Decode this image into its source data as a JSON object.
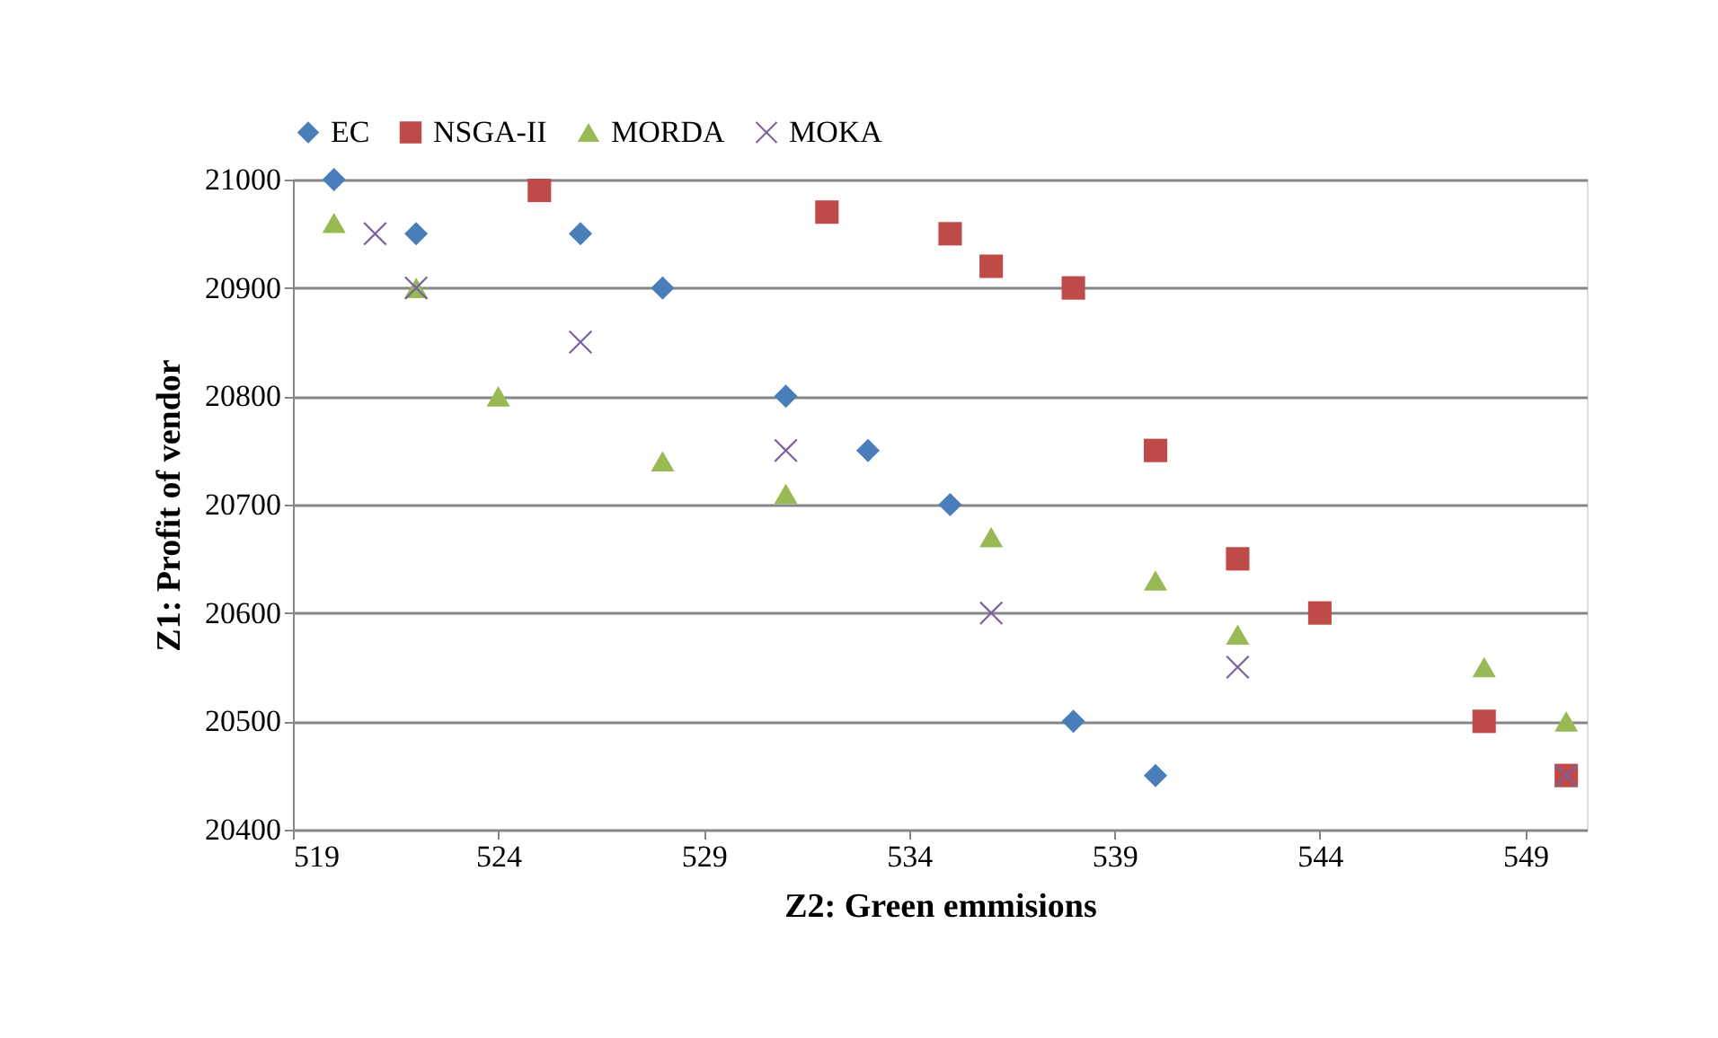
{
  "chart_data": {
    "type": "scatter",
    "xlabel": "Z2: Green emmisions",
    "ylabel": "Z1: Profit of vendor",
    "xlim": [
      519,
      550.5
    ],
    "xticks": [
      519,
      524,
      529,
      534,
      539,
      544,
      549
    ],
    "ylim": [
      20400,
      21000
    ],
    "yticks": [
      20400,
      20500,
      20600,
      20700,
      20800,
      20900,
      21000
    ],
    "grid": "y",
    "legend": "top",
    "series": [
      {
        "name": "EC",
        "color": "#4a7ebb",
        "marker": "diamond",
        "x": [
          520,
          522,
          526,
          528,
          531,
          533,
          535,
          538,
          540
        ],
        "values": [
          21000,
          20950,
          20950,
          20900,
          20800,
          20750,
          20700,
          20500,
          20450
        ]
      },
      {
        "name": "NSGA-II",
        "color": "#be4b48",
        "marker": "square",
        "x": [
          525,
          532,
          535,
          536,
          538,
          540,
          542,
          544,
          548,
          550
        ],
        "values": [
          20990,
          20970,
          20950,
          20920,
          20900,
          20750,
          20650,
          20600,
          20500,
          20450
        ]
      },
      {
        "name": "MORDA",
        "color": "#98b954",
        "marker": "triangle",
        "x": [
          520,
          522,
          524,
          528,
          531,
          536,
          540,
          542,
          548,
          550
        ],
        "values": [
          20960,
          20900,
          20800,
          20740,
          20710,
          20670,
          20630,
          20580,
          20550,
          20500
        ]
      },
      {
        "name": "MOKA",
        "color": "#7d60a0",
        "marker": "cross",
        "x": [
          521,
          522,
          526,
          531,
          536,
          542,
          550
        ],
        "values": [
          20950,
          20900,
          20850,
          20750,
          20600,
          20550,
          20450
        ]
      }
    ]
  }
}
